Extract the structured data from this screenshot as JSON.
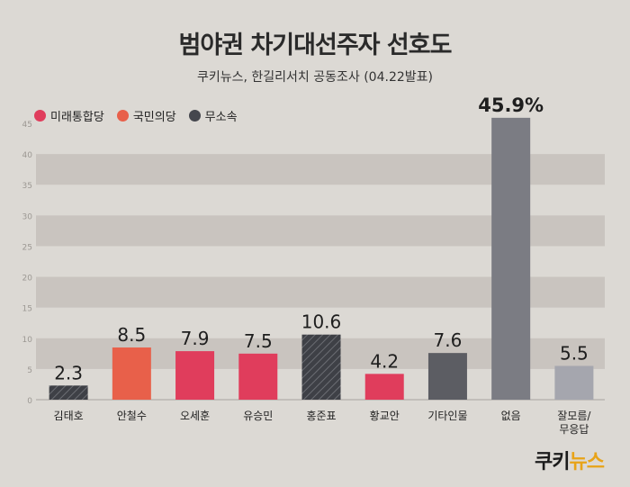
{
  "title": "범야권 차기대선주자 선호도",
  "subtitle": "쿠키뉴스, 한길리서치 공동조사 (04.22발표)",
  "legend": [
    {
      "label": "미래통합당",
      "color": "#e03d5c"
    },
    {
      "label": "국민의당",
      "color": "#e8604a"
    },
    {
      "label": "무소속",
      "color": "#45474e"
    }
  ],
  "logo": {
    "main": "쿠키",
    "accent": "뉴스"
  },
  "chart_data": {
    "type": "bar",
    "categories": [
      "김태호",
      "안철수",
      "오세훈",
      "유승민",
      "홍준표",
      "황교안",
      "기타인물",
      "없음",
      "잘모름/\n무응답"
    ],
    "values": [
      2.3,
      8.5,
      7.9,
      7.5,
      10.6,
      4.2,
      7.6,
      45.9,
      5.5
    ],
    "value_labels": [
      "2.3",
      "8.5",
      "7.9",
      "7.5",
      "10.6",
      "4.2",
      "7.6",
      "45.9%",
      "5.5"
    ],
    "bar_colors": [
      "#3e4046",
      "#e8604a",
      "#e03d5c",
      "#e03d5c",
      "#3e4046",
      "#e03d5c",
      "#5c5d63",
      "#7b7c83",
      "#a5a6ae"
    ],
    "hatched": [
      true,
      false,
      false,
      false,
      true,
      false,
      false,
      false,
      false
    ],
    "yticks": [
      0,
      5,
      10,
      15,
      20,
      25,
      30,
      35,
      40,
      45
    ],
    "ylim": [
      0,
      45
    ],
    "grid": "alternating bands"
  }
}
